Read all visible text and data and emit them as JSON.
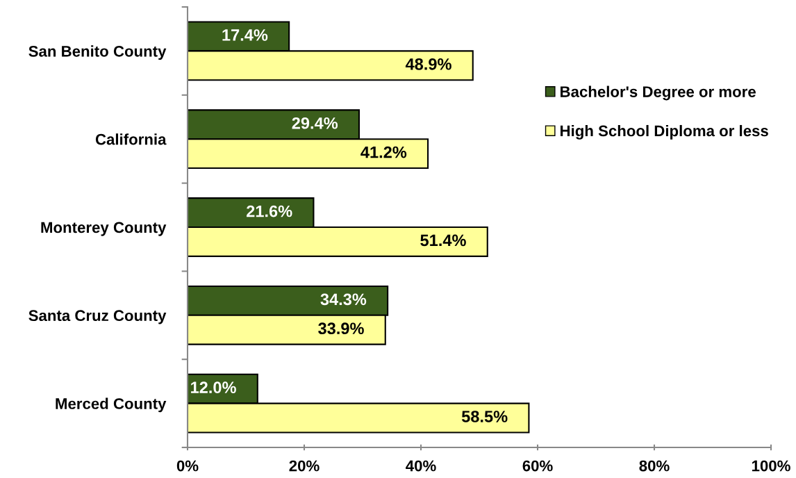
{
  "chart_data": {
    "type": "bar",
    "orientation": "horizontal",
    "categories": [
      "San Benito County",
      "California",
      "Monterey County",
      "Santa Cruz County",
      "Merced County"
    ],
    "series": [
      {
        "name": "Bachelor's Degree or more",
        "color": "#3b5e1c",
        "values": [
          17.4,
          29.4,
          21.6,
          34.3,
          12.0
        ],
        "value_labels": [
          "17.4%",
          "29.4%",
          "21.6%",
          "34.3%",
          "12.0%"
        ]
      },
      {
        "name": "High School Diploma or less",
        "color": "#ffff99",
        "values": [
          48.9,
          41.2,
          51.4,
          33.9,
          58.5
        ],
        "value_labels": [
          "48.9%",
          "41.2%",
          "51.4%",
          "33.9%",
          "58.5%"
        ]
      }
    ],
    "xlim": [
      0,
      100
    ],
    "xticks": [
      {
        "value": 0,
        "label": "0%"
      },
      {
        "value": 20,
        "label": "20%"
      },
      {
        "value": 40,
        "label": "40%"
      },
      {
        "value": 60,
        "label": "60%"
      },
      {
        "value": 80,
        "label": "80%"
      },
      {
        "value": 100,
        "label": "100%"
      }
    ],
    "grid": false,
    "legend": "right"
  }
}
